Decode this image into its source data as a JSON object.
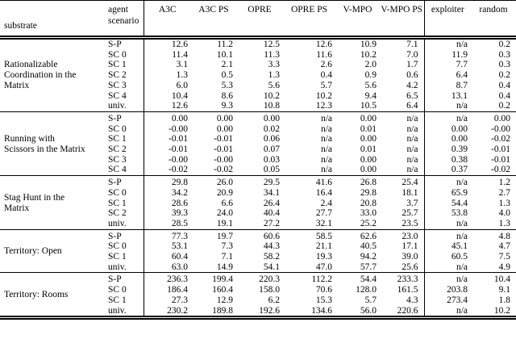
{
  "table": {
    "headers": {
      "substrate": "substrate",
      "agent_scenario": "agent\nscenario",
      "agents": [
        "A3C",
        "A3C PS",
        "OPRE",
        "OPRE PS",
        "V-MPO",
        "V-MPO PS"
      ],
      "extras": [
        "exploiter",
        "random"
      ]
    },
    "groups": [
      {
        "substrate": "Rationalizable\nCoordination in the\nMatrix",
        "rows": [
          {
            "scenario": "S-P",
            "values": [
              "12.6",
              "11.2",
              "12.5",
              "12.6",
              "10.9",
              "7.1",
              "n/a",
              "0.2"
            ]
          },
          {
            "scenario": "SC 0",
            "values": [
              "11.4",
              "10.1",
              "11.3",
              "11.6",
              "10.2",
              "7.0",
              "11.9",
              "0.3"
            ]
          },
          {
            "scenario": "SC 1",
            "values": [
              "3.1",
              "2.1",
              "3.3",
              "2.6",
              "2.0",
              "1.7",
              "7.7",
              "0.3"
            ]
          },
          {
            "scenario": "SC 2",
            "values": [
              "1.3",
              "0.5",
              "1.3",
              "0.4",
              "0.9",
              "0.6",
              "6.4",
              "0.2"
            ]
          },
          {
            "scenario": "SC 3",
            "values": [
              "6.0",
              "5.3",
              "5.6",
              "5.7",
              "5.6",
              "4.2",
              "8.7",
              "0.4"
            ]
          },
          {
            "scenario": "SC 4",
            "values": [
              "10.4",
              "8.6",
              "10.2",
              "10.2",
              "9.4",
              "6.5",
              "13.1",
              "0.4"
            ]
          },
          {
            "scenario": "univ.",
            "values": [
              "12.6",
              "9.3",
              "10.8",
              "12.3",
              "10.5",
              "6.4",
              "n/a",
              "0.2"
            ]
          }
        ]
      },
      {
        "substrate": "Running with\nScissors in the Matrix",
        "rows": [
          {
            "scenario": "S-P",
            "values": [
              "0.00",
              "0.00",
              "0.00",
              "n/a",
              "0.00",
              "n/a",
              "n/a",
              "0.00"
            ]
          },
          {
            "scenario": "SC 0",
            "values": [
              "-0.00",
              "0.00",
              "0.02",
              "n/a",
              "0.01",
              "n/a",
              "0.00",
              "-0.00"
            ]
          },
          {
            "scenario": "SC 1",
            "values": [
              "-0.01",
              "-0.01",
              "0.06",
              "n/a",
              "0.00",
              "n/a",
              "0.00",
              "-0.02"
            ]
          },
          {
            "scenario": "SC 2",
            "values": [
              "-0.01",
              "-0.01",
              "0.07",
              "n/a",
              "0.01",
              "n/a",
              "0.39",
              "-0.01"
            ]
          },
          {
            "scenario": "SC 3",
            "values": [
              "-0.00",
              "-0.00",
              "0.03",
              "n/a",
              "0.00",
              "n/a",
              "0.38",
              "-0.01"
            ]
          },
          {
            "scenario": "SC 4",
            "values": [
              "-0.02",
              "-0.02",
              "0.05",
              "n/a",
              "0.00",
              "n/a",
              "0.37",
              "-0.02"
            ]
          }
        ]
      },
      {
        "substrate": "Stag Hunt in the\nMatrix",
        "rows": [
          {
            "scenario": "S-P",
            "values": [
              "29.8",
              "26.0",
              "29.5",
              "41.6",
              "26.8",
              "25.4",
              "n/a",
              "1.2"
            ]
          },
          {
            "scenario": "SC 0",
            "values": [
              "34.2",
              "20.9",
              "34.1",
              "16.4",
              "29.8",
              "18.1",
              "65.9",
              "2.7"
            ]
          },
          {
            "scenario": "SC 1",
            "values": [
              "28.6",
              "6.6",
              "26.4",
              "2.4",
              "20.8",
              "3.7",
              "54.4",
              "1.3"
            ]
          },
          {
            "scenario": "SC 2",
            "values": [
              "39.3",
              "24.0",
              "40.4",
              "27.7",
              "33.0",
              "25.7",
              "53.8",
              "4.0"
            ]
          },
          {
            "scenario": "univ.",
            "values": [
              "28.5",
              "19.1",
              "27.2",
              "32.1",
              "25.2",
              "23.5",
              "n/a",
              "1.3"
            ]
          }
        ]
      },
      {
        "substrate": "Territory: Open",
        "rows": [
          {
            "scenario": "S-P",
            "values": [
              "77.3",
              "19.7",
              "60.6",
              "58.5",
              "62.6",
              "23.0",
              "n/a",
              "4.8"
            ]
          },
          {
            "scenario": "SC 0",
            "values": [
              "53.1",
              "7.3",
              "44.3",
              "21.1",
              "40.5",
              "17.1",
              "45.1",
              "4.7"
            ]
          },
          {
            "scenario": "SC 1",
            "values": [
              "60.4",
              "7.1",
              "58.2",
              "19.3",
              "94.2",
              "39.0",
              "60.5",
              "7.5"
            ]
          },
          {
            "scenario": "univ.",
            "values": [
              "63.0",
              "14.9",
              "54.1",
              "47.0",
              "57.7",
              "25.6",
              "n/a",
              "4.9"
            ]
          }
        ]
      },
      {
        "substrate": "Territory: Rooms",
        "rows": [
          {
            "scenario": "S-P",
            "values": [
              "236.3",
              "199.4",
              "220.3",
              "112.2",
              "54.4",
              "233.3",
              "n/a",
              "10.4"
            ]
          },
          {
            "scenario": "SC 0",
            "values": [
              "186.4",
              "160.4",
              "158.0",
              "70.6",
              "128.0",
              "161.5",
              "203.8",
              "9.1"
            ]
          },
          {
            "scenario": "SC 1",
            "values": [
              "27.3",
              "12.9",
              "6.2",
              "15.3",
              "5.7",
              "4.3",
              "273.4",
              "1.8"
            ]
          },
          {
            "scenario": "univ.",
            "values": [
              "230.2",
              "189.8",
              "192.6",
              "134.6",
              "56.0",
              "220.6",
              "n/a",
              "10.2"
            ]
          }
        ]
      }
    ]
  }
}
